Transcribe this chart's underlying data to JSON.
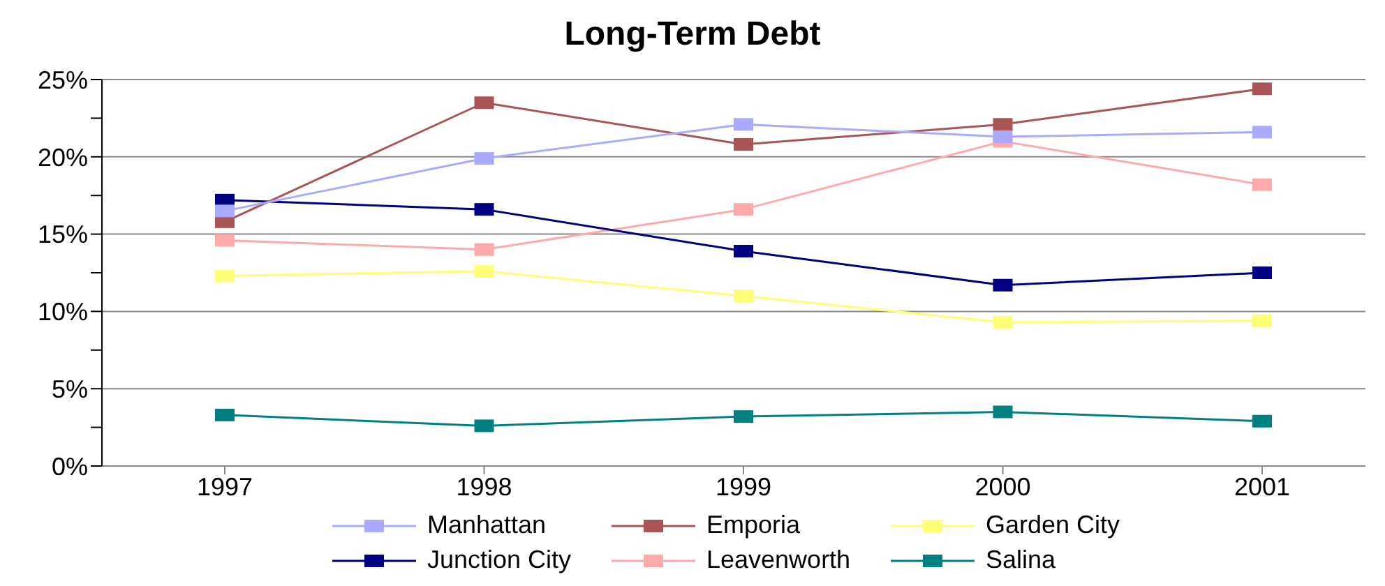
{
  "chart_data": {
    "type": "line",
    "title": "Long-Term Debt",
    "categories": [
      "1997",
      "1998",
      "1999",
      "2000",
      "2001"
    ],
    "series": [
      {
        "name": "Manhattan",
        "color": "#aaaaff",
        "values": [
          16.5,
          19.9,
          22.1,
          21.3,
          21.6
        ]
      },
      {
        "name": "Emporia",
        "color": "#aa5555",
        "values": [
          15.8,
          23.5,
          20.8,
          22.1,
          24.4
        ]
      },
      {
        "name": "Garden City",
        "color": "#ffff77",
        "values": [
          12.3,
          12.6,
          11.0,
          9.3,
          9.4
        ]
      },
      {
        "name": "Junction City",
        "color": "#000080",
        "values": [
          17.2,
          16.6,
          13.9,
          11.7,
          12.5
        ]
      },
      {
        "name": "Leavenworth",
        "color": "#ffaaaa",
        "values": [
          14.6,
          14.0,
          16.6,
          21.0,
          18.2
        ]
      },
      {
        "name": "Salina",
        "color": "#008080",
        "values": [
          3.3,
          2.6,
          3.2,
          3.5,
          2.9
        ]
      }
    ],
    "ylim": [
      0,
      25
    ],
    "yticks": [
      {
        "value": 0,
        "label": "0%"
      },
      {
        "value": 2.5,
        "label": null
      },
      {
        "value": 5,
        "label": "5%"
      },
      {
        "value": 7.5,
        "label": null
      },
      {
        "value": 10,
        "label": "10%"
      },
      {
        "value": 12.5,
        "label": null
      },
      {
        "value": 15,
        "label": "15%"
      },
      {
        "value": 17.5,
        "label": null
      },
      {
        "value": 20,
        "label": "20%"
      },
      {
        "value": 22.5,
        "label": null
      },
      {
        "value": 25,
        "label": "25%"
      }
    ],
    "grid": "y",
    "legend": "bottom",
    "marker": "square",
    "line_style": "solid"
  }
}
